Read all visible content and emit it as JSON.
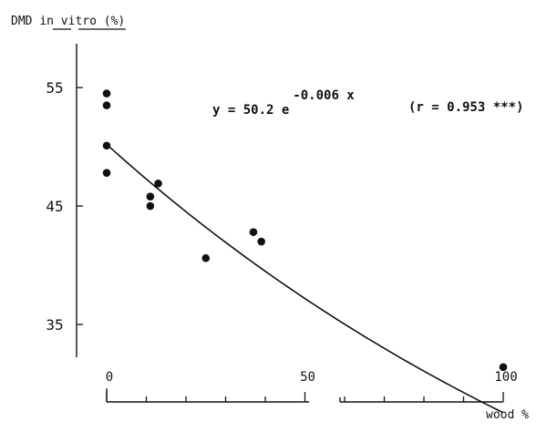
{
  "chart_data": {
    "type": "scatter",
    "ylabel": {
      "prefix": "DMD ",
      "word1": "in",
      "space": " ",
      "word2": "vitro",
      "suffix": " (%)"
    },
    "xlabel": "wood %",
    "x_ticks": [
      {
        "value": 0,
        "label": "0"
      },
      {
        "value": 50,
        "label": "50"
      },
      {
        "value": 100,
        "label": "100"
      }
    ],
    "y_ticks": [
      {
        "value": 55,
        "label": "55"
      },
      {
        "value": 45,
        "label": "45"
      },
      {
        "value": 35,
        "label": "35"
      }
    ],
    "xlim": [
      0,
      100
    ],
    "ylim": [
      31,
      58.7
    ],
    "x_minor_ticks": [
      10,
      20,
      30,
      40,
      60,
      70,
      80,
      90
    ],
    "grid": false,
    "points": [
      {
        "x": 0,
        "y": 54.5
      },
      {
        "x": 0,
        "y": 53.5
      },
      {
        "x": 0,
        "y": 50.1
      },
      {
        "x": 0,
        "y": 47.8
      },
      {
        "x": 11,
        "y": 45.8
      },
      {
        "x": 11,
        "y": 45.0
      },
      {
        "x": 13,
        "y": 46.9
      },
      {
        "x": 25,
        "y": 40.6
      },
      {
        "x": 37,
        "y": 42.8
      },
      {
        "x": 39,
        "y": 42.0
      },
      {
        "x": 100,
        "y": 31.4
      }
    ],
    "fit": {
      "a": 50.2,
      "b": -0.006,
      "x_range": [
        0,
        100
      ],
      "equation": {
        "lhs": "y = 50.2 e",
        "exponent": "-0.006 x"
      },
      "r_label": "(r = 0.953 ***)"
    }
  }
}
